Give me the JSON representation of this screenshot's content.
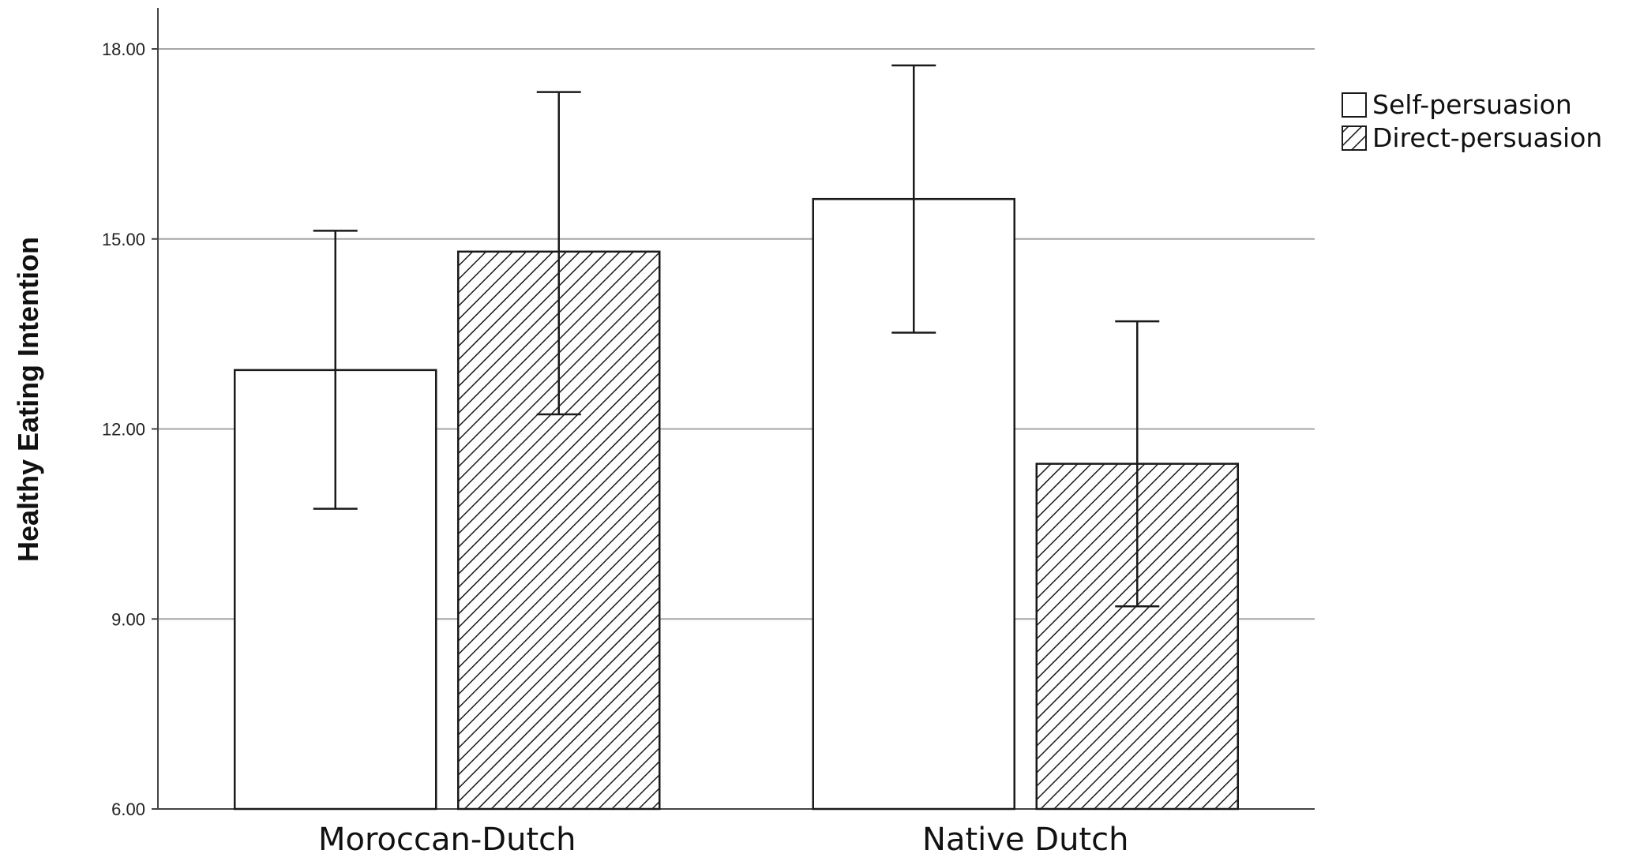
{
  "chart_data": {
    "type": "bar",
    "categories": [
      "Moroccan-Dutch",
      "Native Dutch"
    ],
    "series": [
      {
        "name": "Self-persuasion",
        "pattern": "solid",
        "values": [
          12.93,
          15.63
        ],
        "error_low": [
          10.74,
          13.52
        ],
        "error_high": [
          15.13,
          17.74
        ]
      },
      {
        "name": "Direct-persuasion",
        "pattern": "hatched",
        "values": [
          14.8,
          11.45
        ],
        "error_low": [
          12.23,
          9.2
        ],
        "error_high": [
          17.32,
          13.7
        ]
      }
    ],
    "ylabel": "Healthy Eating Intention",
    "xlabel": "",
    "ylim": [
      6,
      18
    ],
    "yticks": [
      "6.00",
      "9.00",
      "12.00",
      "15.00",
      "18.00"
    ],
    "ytick_values": [
      6,
      9,
      12,
      15,
      18
    ],
    "grid": true,
    "legend_position": "top-right",
    "colors": {
      "bar_fill": "#ffffff",
      "stroke": "#1a1a1a",
      "grid": "#a6a6a6"
    }
  }
}
